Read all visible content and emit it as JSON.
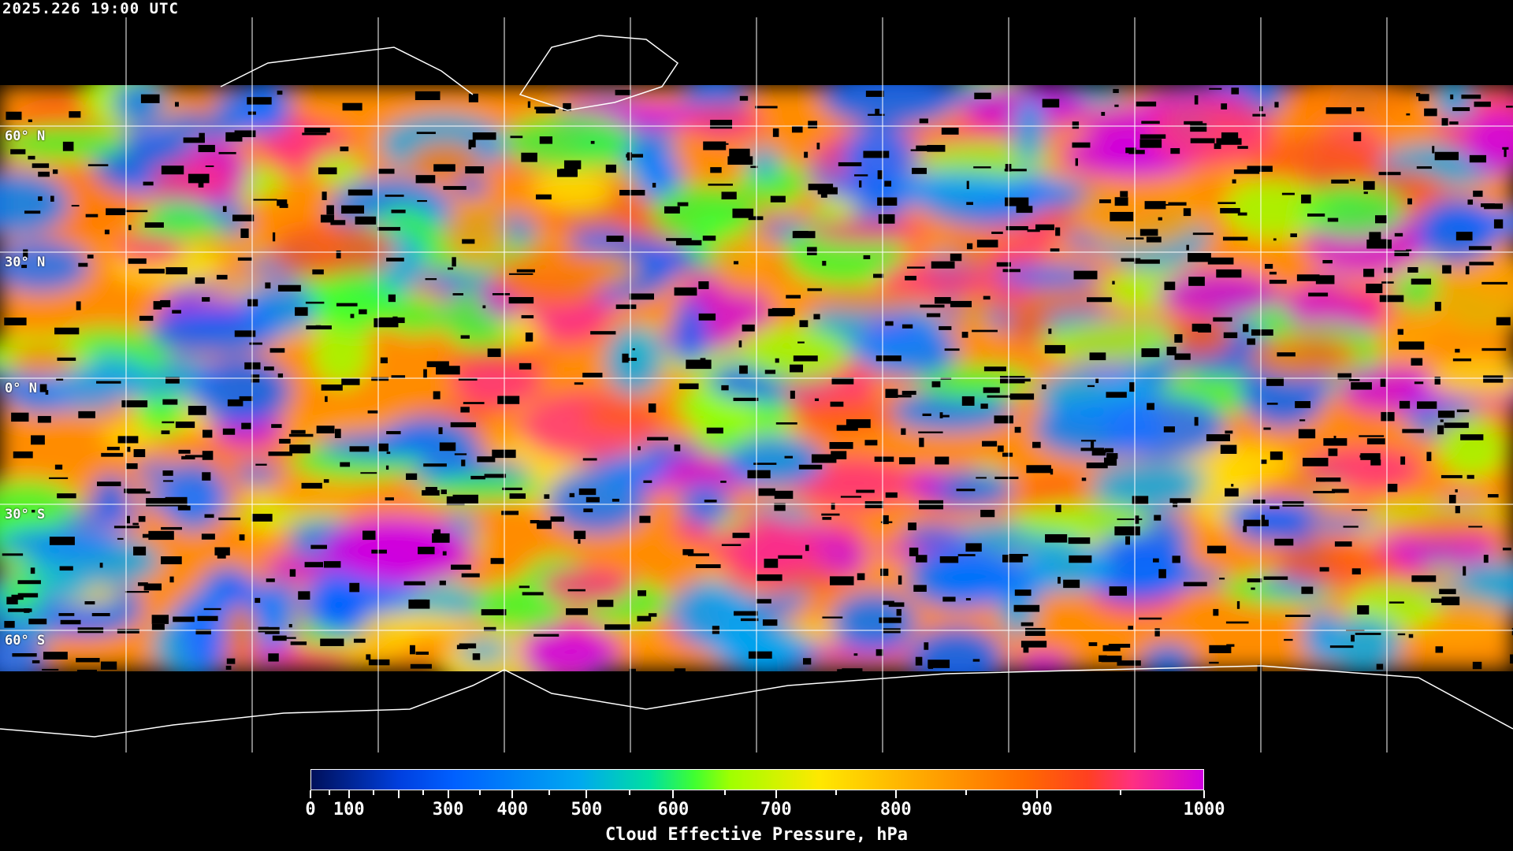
{
  "timestamp": "2025.226 19:00 UTC",
  "map": {
    "projection": "equirectangular",
    "lat_labels": [
      "60° N",
      "30° N",
      "0° N",
      "30° S",
      "60° S"
    ],
    "gridlines": {
      "lat_step_deg": 30,
      "lon_step_deg": 30
    },
    "no_data_color": "#000000",
    "coastline_color": "#ffffff"
  },
  "colorbar": {
    "title": "Cloud Effective Pressure, hPa",
    "min": 0,
    "max": 1000,
    "tick_labels": [
      "0",
      "100",
      "300",
      "400",
      "500",
      "600",
      "700",
      "800",
      "900",
      "1000"
    ],
    "colors": [
      "#00105a",
      "#0040e0",
      "#0060ff",
      "#00a8f0",
      "#00e0a0",
      "#40ff30",
      "#a0ff00",
      "#ffe800",
      "#ffb000",
      "#ff6a00",
      "#ff4020",
      "#ff3080",
      "#d000e0"
    ]
  }
}
